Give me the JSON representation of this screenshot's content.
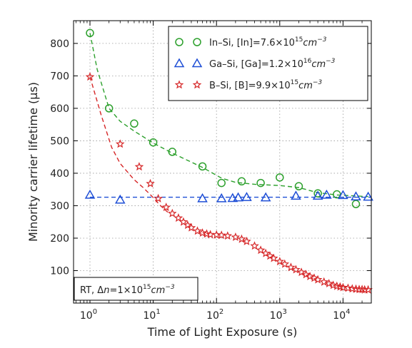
{
  "chart_data": {
    "type": "scatter",
    "xlabel": "Time of Light Exposure (s)",
    "ylabel": "Minority carrier lifetime (μs)",
    "xscale": "log",
    "xlim": [
      0.55,
      28000
    ],
    "ylim": [
      0,
      870
    ],
    "yticks": [
      100,
      200,
      300,
      400,
      500,
      600,
      700,
      800
    ],
    "xticks": [
      {
        "value": 1,
        "mant": "10",
        "exp": "0"
      },
      {
        "value": 10,
        "mant": "10",
        "exp": "1"
      },
      {
        "value": 100,
        "mant": "10",
        "exp": "2"
      },
      {
        "value": 1000,
        "mant": "10",
        "exp": "3"
      },
      {
        "value": 10000,
        "mant": "10",
        "exp": "4"
      }
    ],
    "grid": true,
    "legend_position": "top-right",
    "annotation": {
      "label": "RT, Δ",
      "var": "n",
      "rest": "=1×10",
      "exp": "15",
      "unit": "cm",
      "unit_exp": "−3",
      "position": "bottom-left"
    },
    "series": [
      {
        "name": "In–Si, [In]=7.6×10",
        "name_exp": "15",
        "name_unit": "cm",
        "name_unit_exp": "−3",
        "color": "#2ca02c",
        "marker": "circle",
        "line_style": "dashed",
        "fit_line": [
          [
            1,
            832
          ],
          [
            1.3,
            720
          ],
          [
            2,
            600
          ],
          [
            3,
            560
          ],
          [
            5,
            530
          ],
          [
            10,
            493
          ],
          [
            20,
            462
          ],
          [
            60,
            418
          ],
          [
            120,
            385
          ],
          [
            200,
            372
          ],
          [
            400,
            366
          ],
          [
            1000,
            362
          ],
          [
            2000,
            356
          ],
          [
            4000,
            340
          ],
          [
            8000,
            333
          ],
          [
            25000,
            328
          ]
        ],
        "x": [
          1,
          2,
          5,
          10,
          20,
          60,
          120,
          250,
          500,
          1000,
          2000,
          4000,
          8000,
          16000
        ],
        "y": [
          832,
          600,
          553,
          495,
          466,
          421,
          370,
          375,
          370,
          387,
          360,
          338,
          335,
          305
        ]
      },
      {
        "name": "Ga–Si, [Ga]=1.2×10",
        "name_exp": "16",
        "name_unit": "cm",
        "name_unit_exp": "−3",
        "color": "#1f4fd6",
        "marker": "triangle",
        "line_style": "dashed",
        "fit_line": [
          [
            1,
            326
          ],
          [
            28000,
            326
          ]
        ],
        "x": [
          1,
          3,
          60,
          120,
          180,
          220,
          300,
          600,
          1800,
          4000,
          5500,
          10000,
          16000,
          25000
        ],
        "y": [
          333,
          318,
          322,
          322,
          323,
          325,
          326,
          325,
          330,
          330,
          333,
          332,
          328,
          327
        ]
      },
      {
        "name": "B–Si, [B]=9.9×10",
        "name_exp": "15",
        "name_unit": "cm",
        "name_unit_exp": "−3",
        "color": "#d62728",
        "marker": "star",
        "line_style": "dashed",
        "fit_line": [
          [
            1,
            697
          ],
          [
            1.5,
            580
          ],
          [
            2.2,
            480
          ],
          [
            3,
            430
          ],
          [
            5,
            380
          ],
          [
            7,
            355
          ],
          [
            10,
            325
          ],
          [
            13,
            300
          ],
          [
            17,
            280
          ]
        ],
        "x": [
          1,
          3,
          6,
          9,
          12,
          16,
          20,
          25,
          30,
          35,
          40,
          50,
          60,
          70,
          80,
          100,
          120,
          150,
          200,
          250,
          300,
          400,
          500,
          600,
          700,
          800,
          1000,
          1200,
          1500,
          1800,
          2200,
          2600,
          3000,
          3500,
          4000,
          5000,
          6000,
          7000,
          8000,
          9000,
          10000,
          12000,
          14000,
          16000,
          18000,
          20000,
          22000,
          25000
        ],
        "y": [
          697,
          490,
          420,
          368,
          322,
          295,
          276,
          262,
          250,
          240,
          232,
          222,
          216,
          213,
          211,
          210,
          209,
          207,
          203,
          197,
          190,
          176,
          163,
          153,
          145,
          138,
          128,
          120,
          110,
          103,
          95,
          88,
          82,
          77,
          72,
          65,
          60,
          55,
          52,
          50,
          48,
          46,
          44,
          43,
          42,
          42,
          41,
          41
        ]
      }
    ]
  }
}
